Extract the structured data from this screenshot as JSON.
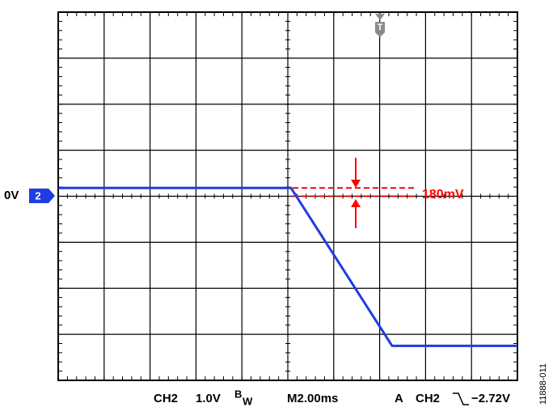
{
  "chart_data": {
    "type": "line",
    "x": [
      0,
      10.14,
      14.54,
      20
    ],
    "series": [
      {
        "name": "CH2",
        "color": "#1f3de0",
        "values": [
          0.18,
          0.18,
          -3.25,
          -3.25
        ]
      }
    ],
    "xlim": [
      0,
      20
    ],
    "ylim": [
      -4,
      4
    ],
    "xticks": [
      0,
      2,
      4,
      6,
      8,
      10,
      12,
      14,
      16,
      18,
      20
    ],
    "yticks": [
      -4,
      -3,
      -2,
      -1,
      0,
      1,
      2,
      3,
      4
    ],
    "grid": true,
    "annotation": {
      "label": "180mV",
      "levels": [
        0,
        0.18
      ],
      "color": "#ff0000"
    },
    "ground_label": "0V",
    "channel_marker": "2",
    "trigger_marker": "T",
    "status": {
      "channel": "CH2",
      "scale": "1.0V",
      "bw": "B",
      "bw_sub": "W",
      "timebase": "M2.00ms",
      "trigger_mode": "A",
      "trigger_channel": "CH2",
      "trigger_level": "−2.72V"
    },
    "figure_id": "11888-011"
  }
}
